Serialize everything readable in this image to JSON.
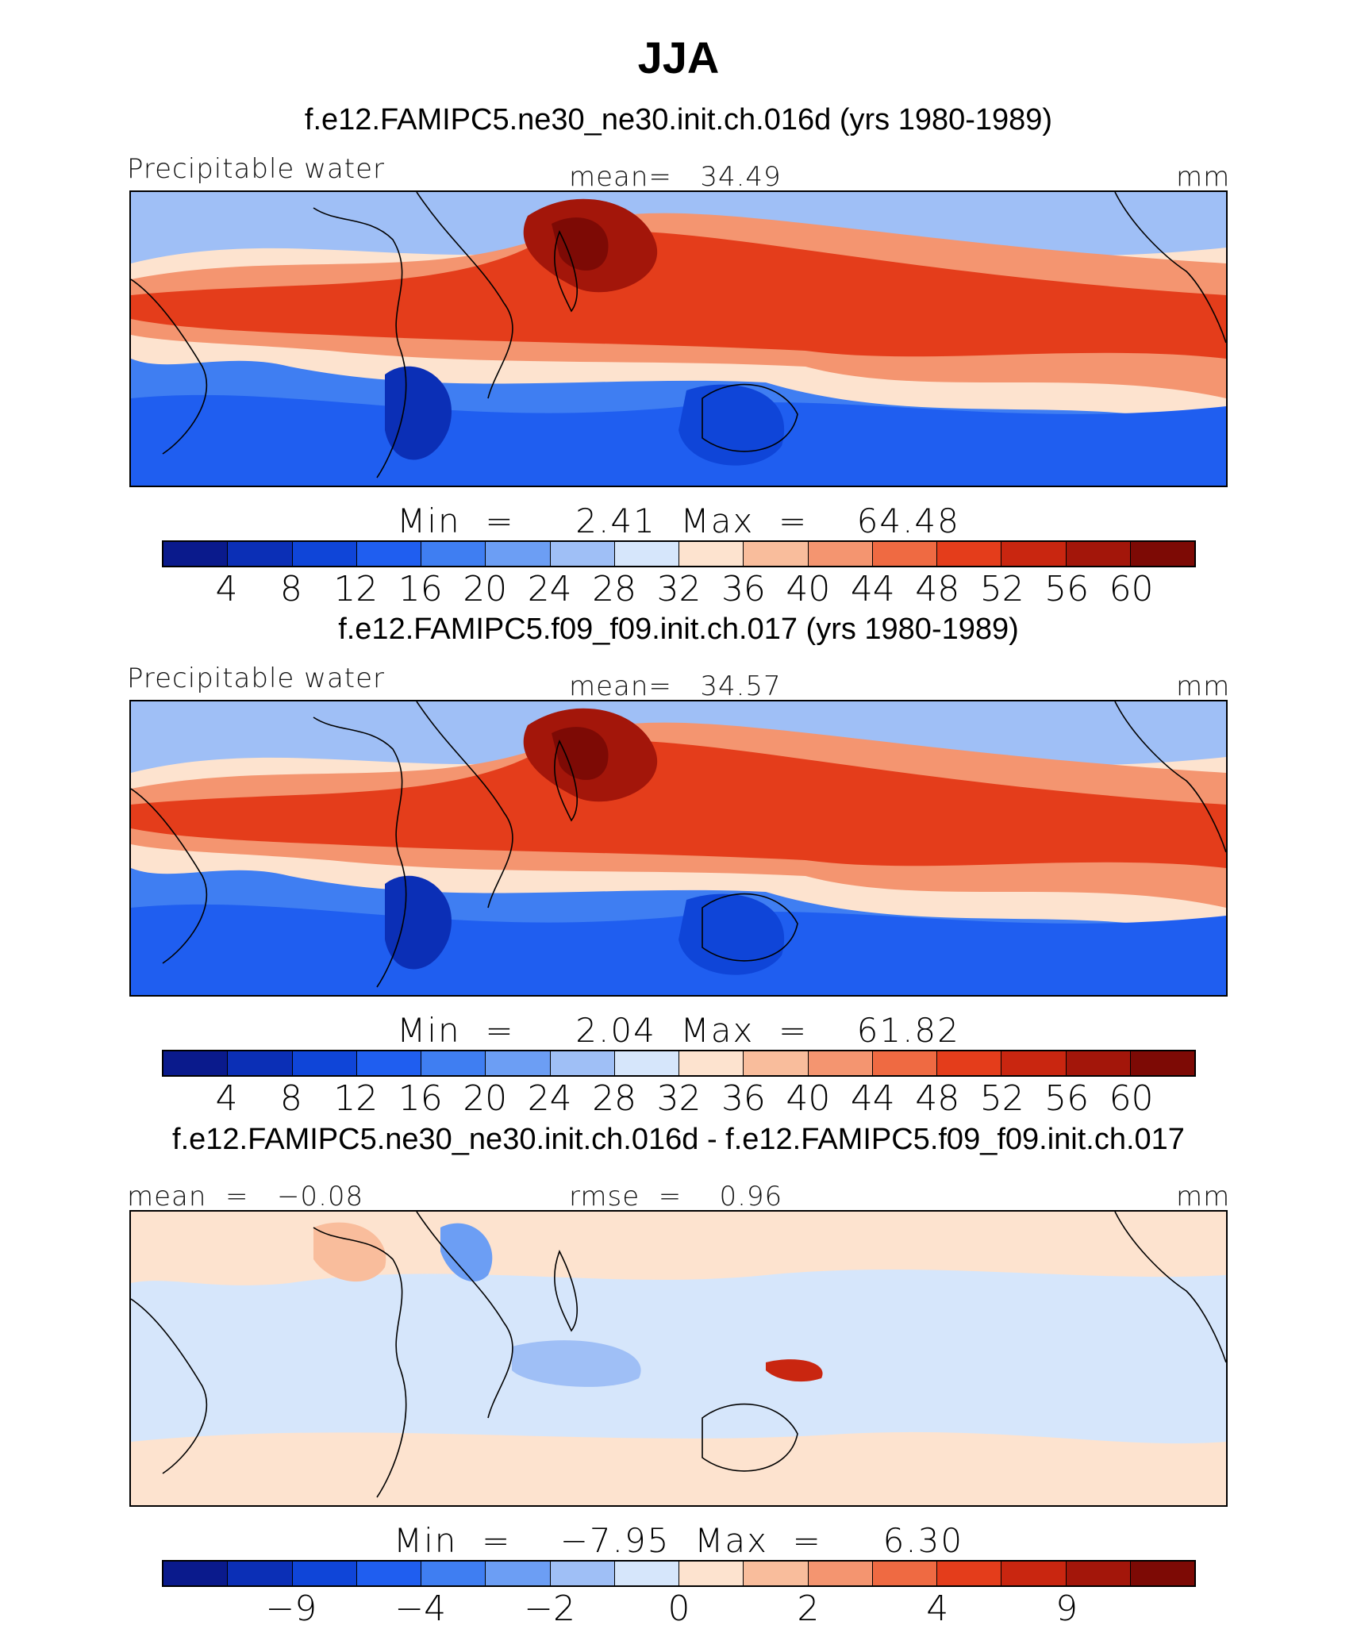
{
  "figure_title": "JJA",
  "chart_data": [
    {
      "type": "heatmap",
      "title": "f.e12.FAMIPC5.ne30_ne30.init.ch.016d (yrs 1980-1989)",
      "variable": "Precipitable water",
      "units": "mm",
      "stat_left": "",
      "stat_center": "mean=   34.49",
      "mean": 34.49,
      "min": 2.41,
      "max": 64.48,
      "minmax_text": "Min  =     2.41  Max  =    64.48",
      "levels": [
        4,
        8,
        12,
        16,
        20,
        24,
        28,
        32,
        36,
        40,
        44,
        48,
        52,
        56,
        60
      ],
      "tick_labels": [
        "4",
        "8",
        "12",
        "16",
        "20",
        "24",
        "28",
        "32",
        "36",
        "40",
        "44",
        "48",
        "52",
        "56",
        "60"
      ],
      "colors": [
        "#0a1a8c",
        "#0b2fb6",
        "#0f45d8",
        "#1f5ef0",
        "#3f7ef2",
        "#6c9ef4",
        "#9fbff6",
        "#d6e6fb",
        "#fde3cf",
        "#f9bd9c",
        "#f49570",
        "#ef6a42",
        "#e43d1b",
        "#c92610",
        "#a3160a",
        "#7d0a05"
      ]
    },
    {
      "type": "heatmap",
      "title": "f.e12.FAMIPC5.f09_f09.init.ch.017 (yrs 1980-1989)",
      "variable": "Precipitable water",
      "units": "mm",
      "stat_left": "",
      "stat_center": "mean=   34.57",
      "mean": 34.57,
      "min": 2.04,
      "max": 61.82,
      "minmax_text": "Min  =     2.04  Max  =    61.82",
      "levels": [
        4,
        8,
        12,
        16,
        20,
        24,
        28,
        32,
        36,
        40,
        44,
        48,
        52,
        56,
        60
      ],
      "tick_labels": [
        "4",
        "8",
        "12",
        "16",
        "20",
        "24",
        "28",
        "32",
        "36",
        "40",
        "44",
        "48",
        "52",
        "56",
        "60"
      ],
      "colors": [
        "#0a1a8c",
        "#0b2fb6",
        "#0f45d8",
        "#1f5ef0",
        "#3f7ef2",
        "#6c9ef4",
        "#9fbff6",
        "#d6e6fb",
        "#fde3cf",
        "#f9bd9c",
        "#f49570",
        "#ef6a42",
        "#e43d1b",
        "#c92610",
        "#a3160a",
        "#7d0a05"
      ]
    },
    {
      "type": "heatmap",
      "title": "f.e12.FAMIPC5.ne30_ne30.init.ch.016d - f.e12.FAMIPC5.f09_f09.init.ch.017",
      "variable": "",
      "units": "mm",
      "stat_left": "mean  =   −0.08",
      "stat_center": "rmse  =    0.96",
      "mean": -0.08,
      "rmse": 0.96,
      "min": -7.95,
      "max": 6.3,
      "minmax_text": "Min  =    −7.95  Max  =     6.30",
      "levels": [
        -9,
        -4,
        -2,
        0,
        2,
        4,
        9
      ],
      "tick_labels": [
        "−9",
        "−4",
        "−2",
        "0",
        "2",
        "4",
        "9"
      ],
      "colors": [
        "#0a1a8c",
        "#0b2fb6",
        "#0f45d8",
        "#1f5ef0",
        "#3f7ef2",
        "#6c9ef4",
        "#9fbff6",
        "#d6e6fb",
        "#fde3cf",
        "#f9bd9c",
        "#f49570",
        "#ef6a42",
        "#e43d1b",
        "#c92610",
        "#a3160a",
        "#7d0a05"
      ]
    }
  ]
}
